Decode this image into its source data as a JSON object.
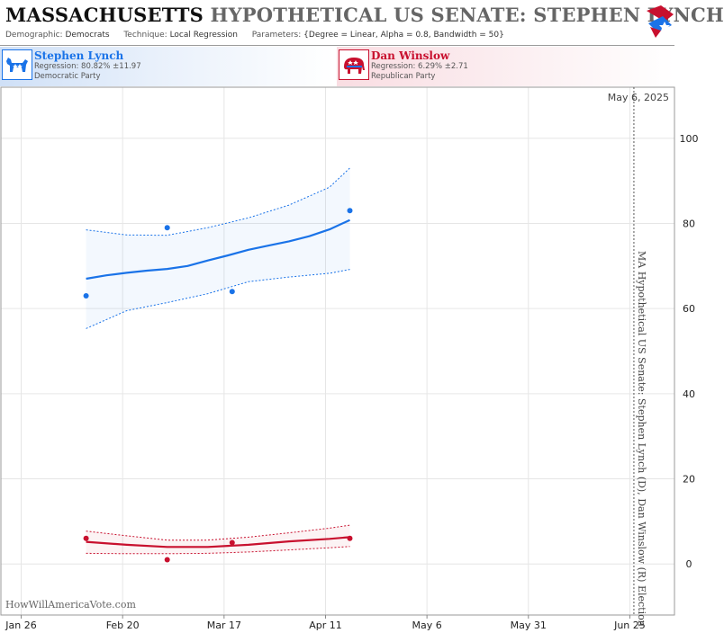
{
  "header": {
    "state": "MASSACHUSETTS",
    "title": "HYPOTHETICAL US SENATE: STEPHEN LYNCH",
    "demographic_label": "Demographic:",
    "demographic": "Democrats",
    "technique_label": "Technique:",
    "technique": "Local Regression",
    "parameters_label": "Parameters:",
    "parameters": "{Degree = Linear, Alpha = 0.8, Bandwidth = 50}"
  },
  "candidates": [
    {
      "name": "Stephen Lynch",
      "regression": "Regression: 80.82% ±11.97",
      "party": "Democratic Party",
      "color": "#1a73e8"
    },
    {
      "name": "Dan Winslow",
      "regression": "Regression: 6.29% ±2.71",
      "party": "Republican Party",
      "color": "#c8102e"
    }
  ],
  "chart_data": {
    "type": "line",
    "date_tag": "May 6, 2025",
    "vertical_label": "MA Hypothetical US Senate: Stephen Lynch (D), Dan Winslow (R) Election",
    "credit": "HowWillAmericaVote.com",
    "x_ticks": [
      "Jan 26",
      "Feb 20",
      "Mar 17",
      "Apr 11",
      "May 6",
      "May 31",
      "Jun 25"
    ],
    "x_tick_dates": [
      "2025-01-26",
      "2025-02-20",
      "2025-03-17",
      "2025-04-11",
      "2025-05-06",
      "2025-05-31",
      "2025-06-25"
    ],
    "xlim": [
      "2025-01-21",
      "2025-07-06"
    ],
    "ylim": [
      -12,
      112
    ],
    "y_ticks": [
      0,
      20,
      40,
      60,
      80,
      100
    ],
    "current_date": "2025-06-26",
    "grid": true,
    "series": [
      {
        "name": "Stephen Lynch",
        "color": "#1a73e8",
        "points": [
          [
            "2025-02-11",
            63
          ],
          [
            "2025-03-03",
            79
          ],
          [
            "2025-03-19",
            64
          ],
          [
            "2025-04-17",
            83
          ]
        ],
        "trend": [
          [
            "2025-02-11",
            67
          ],
          [
            "2025-02-16",
            67.8
          ],
          [
            "2025-02-21",
            68.4
          ],
          [
            "2025-02-26",
            68.9
          ],
          [
            "2025-03-03",
            69.3
          ],
          [
            "2025-03-08",
            70
          ],
          [
            "2025-03-13",
            71.3
          ],
          [
            "2025-03-18",
            72.5
          ],
          [
            "2025-03-23",
            73.8
          ],
          [
            "2025-03-28",
            74.8
          ],
          [
            "2025-04-02",
            75.8
          ],
          [
            "2025-04-07",
            77
          ],
          [
            "2025-04-12",
            78.6
          ],
          [
            "2025-04-17",
            80.8
          ]
        ],
        "upper": [
          [
            "2025-02-11",
            78.5
          ],
          [
            "2025-02-21",
            77.3
          ],
          [
            "2025-03-03",
            77.2
          ],
          [
            "2025-03-13",
            79
          ],
          [
            "2025-03-23",
            81.3
          ],
          [
            "2025-04-02",
            84.3
          ],
          [
            "2025-04-12",
            88.5
          ],
          [
            "2025-04-17",
            93
          ]
        ],
        "lower": [
          [
            "2025-02-11",
            55.3
          ],
          [
            "2025-02-21",
            59.5
          ],
          [
            "2025-03-03",
            61.4
          ],
          [
            "2025-03-13",
            63.5
          ],
          [
            "2025-03-23",
            66.3
          ],
          [
            "2025-04-02",
            67.4
          ],
          [
            "2025-04-12",
            68.3
          ],
          [
            "2025-04-17",
            69.2
          ]
        ]
      },
      {
        "name": "Dan Winslow",
        "color": "#c8102e",
        "points": [
          [
            "2025-02-11",
            6
          ],
          [
            "2025-03-03",
            1
          ],
          [
            "2025-03-19",
            5
          ],
          [
            "2025-04-17",
            6
          ]
        ],
        "trend": [
          [
            "2025-02-11",
            5.2
          ],
          [
            "2025-02-21",
            4.5
          ],
          [
            "2025-03-03",
            4
          ],
          [
            "2025-03-13",
            4
          ],
          [
            "2025-03-23",
            4.5
          ],
          [
            "2025-04-02",
            5.3
          ],
          [
            "2025-04-12",
            5.9
          ],
          [
            "2025-04-17",
            6.3
          ]
        ],
        "upper": [
          [
            "2025-02-11",
            7.7
          ],
          [
            "2025-02-21",
            6.6
          ],
          [
            "2025-03-03",
            5.6
          ],
          [
            "2025-03-13",
            5.6
          ],
          [
            "2025-03-23",
            6.3
          ],
          [
            "2025-04-02",
            7.3
          ],
          [
            "2025-04-12",
            8.4
          ],
          [
            "2025-04-17",
            9.1
          ]
        ],
        "lower": [
          [
            "2025-02-11",
            2.5
          ],
          [
            "2025-02-21",
            2.4
          ],
          [
            "2025-03-03",
            2.4
          ],
          [
            "2025-03-13",
            2.5
          ],
          [
            "2025-03-23",
            2.8
          ],
          [
            "2025-04-02",
            3.3
          ],
          [
            "2025-04-12",
            3.8
          ],
          [
            "2025-04-17",
            4.1
          ]
        ]
      }
    ]
  }
}
